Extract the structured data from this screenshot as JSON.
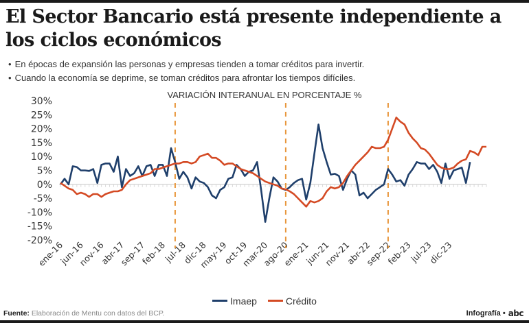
{
  "header": {
    "title": "El Sector Bancario está presente independiente a los ciclos económicos",
    "bullets": [
      "En épocas de expansión las personas y empresas tienden a tomar créditos para invertir.",
      "Cuando la economía se deprime, se toman créditos para afrontar los tiempos difíciles."
    ]
  },
  "footer": {
    "source_label": "Fuente:",
    "source_text": "Elaboración de Mentu con datos del BCP.",
    "credit_label": "Infografía •",
    "logo_text": "abc"
  },
  "chart_data": {
    "type": "line",
    "title": "VARIACIÓN INTERANUAL EN PORCENTAJE %",
    "xlabel": "",
    "ylabel": "",
    "ylim": [
      -20,
      30
    ],
    "yticks": [
      30,
      25,
      20,
      15,
      10,
      5,
      0,
      -5,
      -10,
      -15,
      -20
    ],
    "ytick_labels": [
      "30%",
      "25%",
      "20%",
      "15%",
      "10%",
      "5%",
      "0%",
      "-5%",
      "-10%",
      "-15%",
      "-20%"
    ],
    "x_start": "ene-16",
    "x_tick_labels": [
      "ene-16",
      "jun-16",
      "nov-16",
      "abr-17",
      "sep-17",
      "feb-18",
      "jul-18",
      "dic-18",
      "may-19",
      "oct-19",
      "mar-20",
      "ago-20",
      "ene-21",
      "jun-21",
      "nov-21",
      "abr-22",
      "sep-22",
      "feb-23",
      "jul-23",
      "dic-23"
    ],
    "x_tick_every_months": 5,
    "reference_lines": [
      {
        "label": "may-18",
        "month_index": 28,
        "style": "dashed"
      },
      {
        "label": "ago-20",
        "month_index": 55,
        "style": "dashed"
      },
      {
        "label": "sep-22",
        "month_index": 80,
        "style": "dashed"
      }
    ],
    "legend": "bottom-center",
    "grid": false,
    "series": [
      {
        "name": "Imaep",
        "color": "#1f3f6b",
        "values": [
          0.0,
          2.0,
          0.0,
          6.5,
          6.2,
          5.0,
          5.0,
          4.8,
          5.5,
          0.5,
          7.0,
          7.5,
          7.5,
          4.5,
          10.0,
          -1.0,
          5.5,
          3.0,
          4.0,
          6.5,
          3.0,
          6.5,
          7.0,
          3.0,
          7.0,
          7.0,
          3.0,
          13.0,
          8.0,
          2.0,
          4.5,
          2.5,
          -1.5,
          2.5,
          1.0,
          0.5,
          -1.0,
          -4.0,
          -5.0,
          -2.0,
          -1.0,
          2.0,
          2.5,
          7.0,
          5.5,
          3.0,
          4.5,
          5.0,
          8.0,
          -2.0,
          -13.5,
          -5.0,
          2.5,
          1.0,
          -1.5,
          -2.0,
          -1.0,
          0.5,
          1.5,
          2.0,
          -5.5,
          0.5,
          11.0,
          21.5,
          13.0,
          8.0,
          3.5,
          3.8,
          3.0,
          -2.0,
          2.0,
          5.0,
          3.5,
          -4.0,
          -3.0,
          -5.0,
          -3.5,
          -2.0,
          -1.0,
          0.0,
          5.5,
          3.5,
          1.0,
          1.5,
          -0.5,
          3.5,
          5.5,
          8.0,
          7.5,
          7.5,
          5.5,
          7.0,
          4.5,
          0.5,
          7.5,
          2.0,
          5.0,
          5.5,
          6.0,
          0.5,
          8.0
        ]
      },
      {
        "name": "Crédito",
        "color": "#d44a24",
        "values": [
          0.5,
          -0.5,
          -1.5,
          -2.0,
          -3.5,
          -3.0,
          -3.5,
          -4.5,
          -3.5,
          -3.5,
          -4.5,
          -3.5,
          -3.0,
          -2.5,
          -2.5,
          -2.0,
          0.0,
          1.5,
          2.0,
          2.5,
          3.0,
          3.5,
          4.0,
          5.5,
          5.5,
          6.0,
          6.5,
          7.0,
          7.5,
          7.5,
          8.0,
          8.0,
          7.5,
          8.0,
          10.0,
          10.5,
          11.0,
          9.5,
          9.5,
          8.5,
          7.0,
          7.5,
          7.5,
          6.5,
          5.5,
          5.0,
          4.5,
          4.0,
          3.0,
          2.0,
          1.0,
          0.5,
          0.0,
          -0.5,
          -1.5,
          -1.8,
          -2.5,
          -3.5,
          -5.0,
          -6.5,
          -8.0,
          -6.0,
          -6.5,
          -6.0,
          -5.0,
          -2.5,
          -1.0,
          -1.5,
          -1.0,
          0.5,
          3.0,
          5.0,
          7.0,
          8.5,
          10.0,
          11.5,
          13.5,
          13.0,
          13.0,
          13.5,
          16.0,
          20.0,
          24.0,
          22.5,
          21.5,
          18.5,
          16.5,
          15.0,
          13.0,
          12.5,
          11.0,
          9.0,
          7.0,
          6.0,
          5.5,
          5.5,
          6.0,
          7.5,
          8.5,
          9.0,
          12.0,
          11.5,
          10.5,
          13.5,
          13.5
        ]
      }
    ]
  }
}
